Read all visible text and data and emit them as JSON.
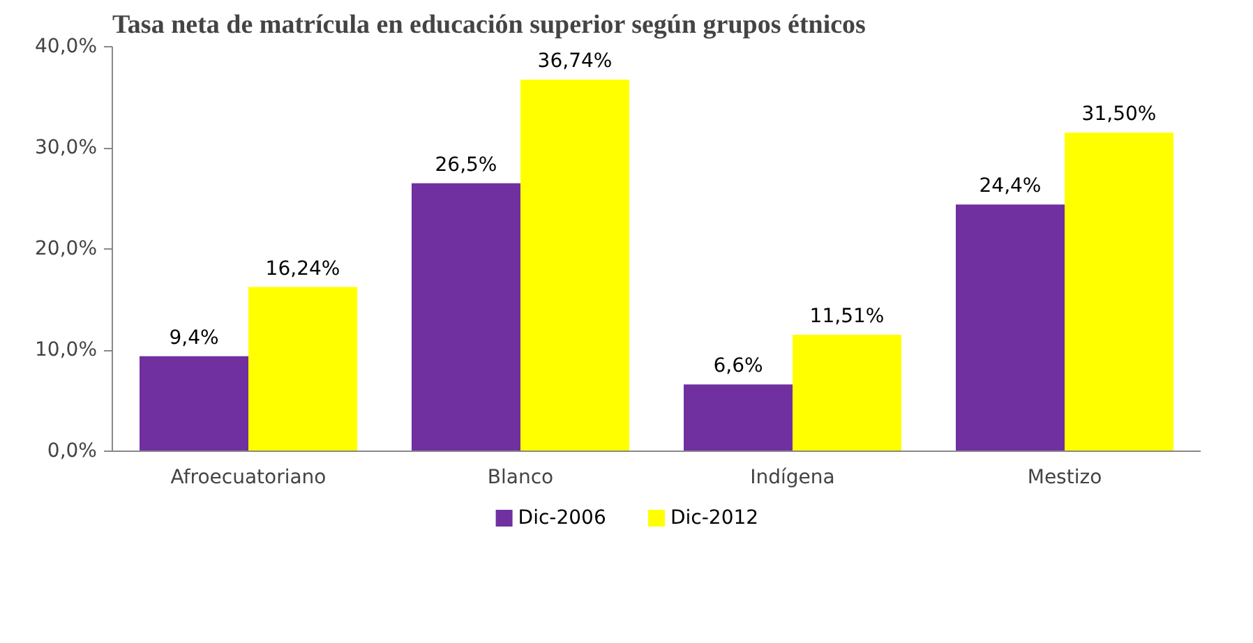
{
  "chart_data": {
    "type": "bar",
    "title": "Tasa neta de matrícula en educación superior según grupos étnicos",
    "categories": [
      "Afroecuatoriano",
      "Blanco",
      "Indígena",
      "Mestizo"
    ],
    "series": [
      {
        "name": "Dic-2006",
        "color": "#7030a0",
        "values": [
          9.4,
          26.5,
          6.6,
          24.4
        ],
        "value_labels": [
          "9,4%",
          "26,5%",
          "6,6%",
          "24,4%"
        ]
      },
      {
        "name": "Dic-2012",
        "color": "#ffff00",
        "values": [
          16.24,
          36.74,
          11.51,
          31.5
        ],
        "value_labels": [
          "16,24%",
          "36,74%",
          "11,51%",
          "31,50%"
        ]
      }
    ],
    "ylim": [
      0,
      40
    ],
    "yticks": [
      {
        "value": 0,
        "label": "0,0%"
      },
      {
        "value": 10,
        "label": "10,0%"
      },
      {
        "value": 20,
        "label": "20,0%"
      },
      {
        "value": 30,
        "label": "30,0%"
      },
      {
        "value": 40,
        "label": "40,0%"
      }
    ],
    "grid": false,
    "legend": "bottom"
  }
}
